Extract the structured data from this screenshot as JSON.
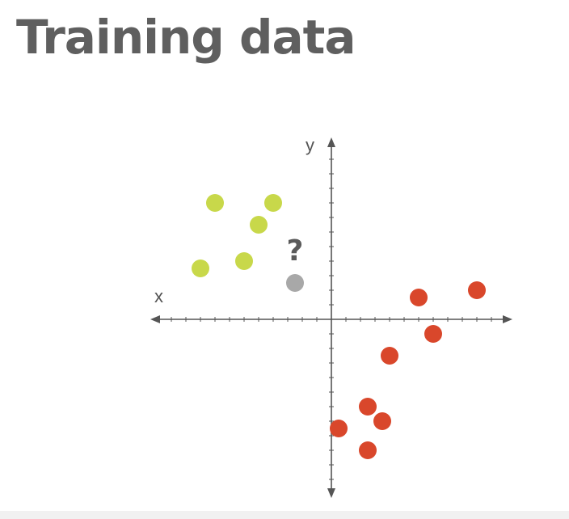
{
  "title": "Training data",
  "chart_data": {
    "type": "scatter",
    "axes": {
      "x_label": "x",
      "y_label": "y",
      "grid": false
    },
    "series": [
      {
        "color": "#c8d84a",
        "points": [
          [
            -8,
            8
          ],
          [
            -4,
            8
          ],
          [
            -5,
            6.5
          ],
          [
            -6,
            4
          ],
          [
            -9,
            3.5
          ]
        ]
      },
      {
        "color": "#d9472b",
        "points": [
          [
            4,
            -2.5
          ],
          [
            6,
            1.5
          ],
          [
            7,
            -1
          ],
          [
            10,
            2
          ],
          [
            2.5,
            -6
          ],
          [
            3.5,
            -7
          ],
          [
            0.5,
            -7.5
          ],
          [
            2.5,
            -9
          ]
        ]
      }
    ],
    "query_point": {
      "x": -2.5,
      "y": 2.5,
      "label": "?",
      "color": "#a8a8a8"
    }
  }
}
